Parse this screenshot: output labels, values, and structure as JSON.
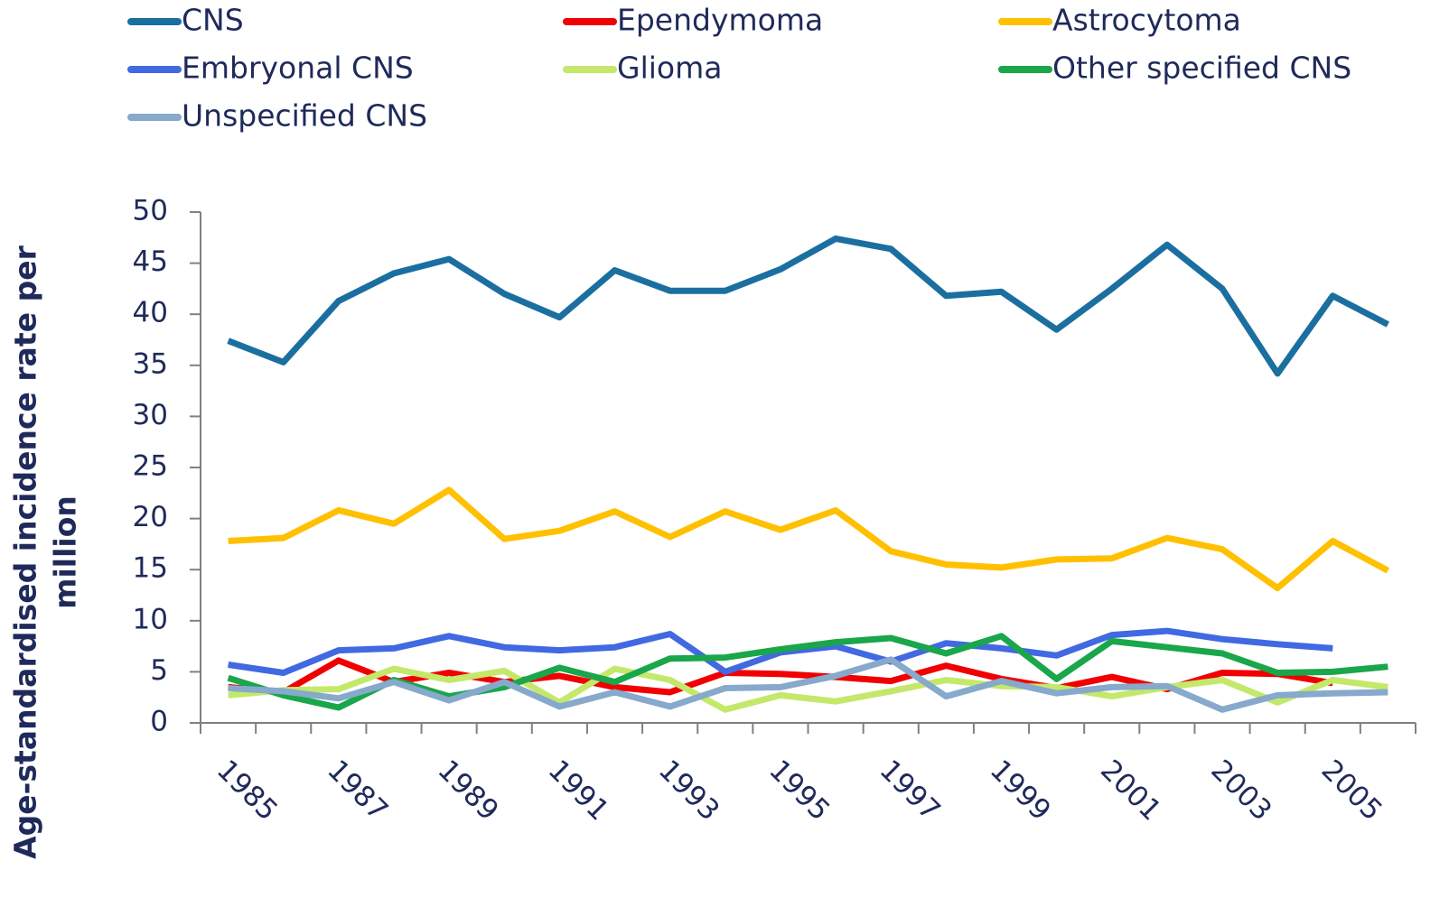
{
  "chart_data": {
    "type": "line",
    "y_label": [
      "Age-standardised incidence rate per",
      "million"
    ],
    "categories": [
      "1985",
      null,
      "1987",
      null,
      "1989",
      null,
      "1991",
      null,
      "1993",
      null,
      "1995",
      null,
      "1997",
      null,
      "1999",
      null,
      "2001",
      null,
      "2003",
      null,
      "2005",
      null
    ],
    "ylim": [
      0,
      50
    ],
    "yticks": [
      0,
      5,
      10,
      15,
      20,
      25,
      30,
      35,
      40,
      45,
      50
    ],
    "series": [
      {
        "name": "CNS",
        "color": "#1b6fa0",
        "values": [
          37.4,
          35.3,
          41.3,
          44,
          45.4,
          42,
          39.7,
          44.3,
          42.3,
          42.3,
          44.4,
          47.4,
          46.4,
          41.8,
          42.2,
          38.5,
          42.5,
          46.8,
          42.5,
          34.2,
          41.8,
          39
        ]
      },
      {
        "name": "Ependymoma",
        "color": "#f00000",
        "values": [
          3.5,
          3.0,
          6.1,
          4.0,
          4.9,
          4.0,
          4.6,
          3.5,
          3.0,
          4.9,
          4.8,
          4.5,
          4.1,
          5.6,
          4.3,
          3.4,
          4.5,
          3.3,
          4.9,
          4.8,
          3.9,
          null
        ]
      },
      {
        "name": "Astrocytoma",
        "color": "#ffc000",
        "values": [
          17.8,
          18.1,
          20.8,
          19.5,
          22.8,
          18,
          18.8,
          20.7,
          18.2,
          20.7,
          18.9,
          20.8,
          16.8,
          15.5,
          15.2,
          16,
          16.1,
          18.1,
          17,
          13.2,
          17.8,
          14.9
        ]
      },
      {
        "name": "Embryonal CNS",
        "color": "#4169e1",
        "values": [
          5.7,
          4.9,
          7.1,
          7.3,
          8.5,
          7.4,
          7.1,
          7.4,
          8.7,
          5.0,
          6.9,
          7.5,
          6.0,
          7.8,
          7.3,
          6.6,
          8.6,
          9.0,
          8.2,
          7.7,
          7.3,
          null
        ]
      },
      {
        "name": "Glioma",
        "color": "#c4e86a",
        "values": [
          2.7,
          3.2,
          3.3,
          5.3,
          4.2,
          5.1,
          2.0,
          5.3,
          4.2,
          1.3,
          2.7,
          2.1,
          3.1,
          4.2,
          3.6,
          3.5,
          2.6,
          3.5,
          4.2,
          2.0,
          4.2,
          3.5
        ]
      },
      {
        "name": "Other specified CNS",
        "color": "#1aa64a",
        "values": [
          4.4,
          2.7,
          1.5,
          4.2,
          2.6,
          3.5,
          5.4,
          4.0,
          6.3,
          6.4,
          7.2,
          7.9,
          8.3,
          6.8,
          8.5,
          4.3,
          8.0,
          7.4,
          6.8,
          4.9,
          5.0,
          5.5
        ]
      },
      {
        "name": "Unspecified CNS",
        "color": "#86a9cc",
        "values": [
          3.4,
          3.1,
          2.4,
          4.0,
          2.2,
          4.0,
          1.6,
          3.0,
          1.6,
          3.4,
          3.5,
          4.6,
          6.2,
          2.6,
          4.1,
          2.9,
          3.5,
          3.6,
          1.3,
          2.7,
          2.9,
          3.0
        ]
      }
    ]
  }
}
